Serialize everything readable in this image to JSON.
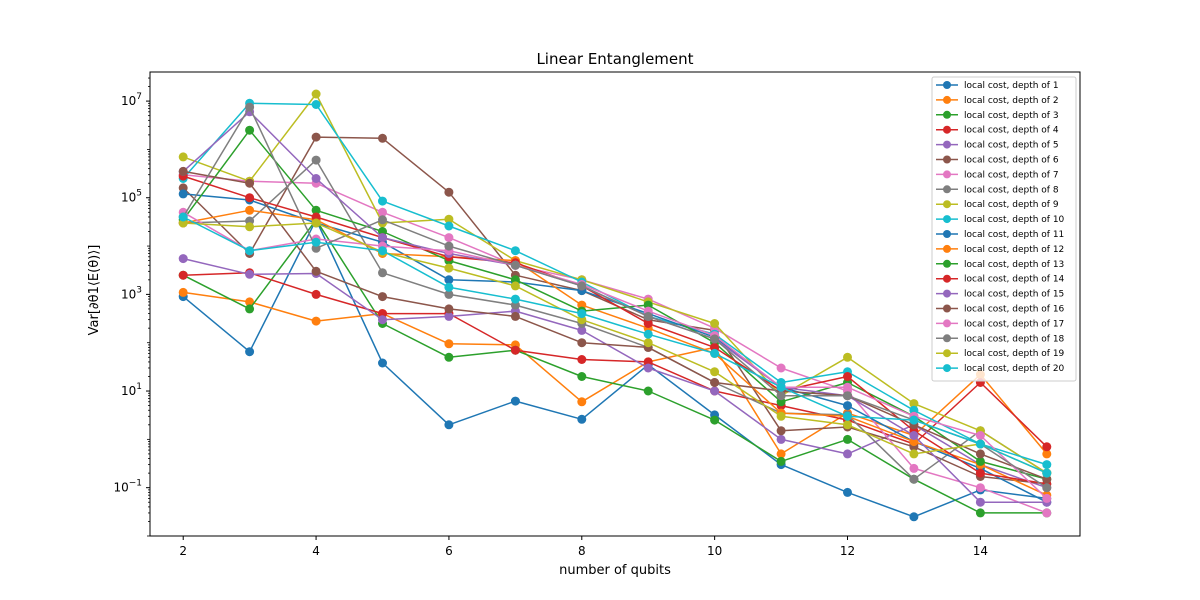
{
  "chart_data": {
    "type": "line",
    "title": "Linear Entanglement",
    "xlabel": "number of qubits",
    "ylabel": "Var[∂θ1⟨E(θ)⟩]",
    "x": [
      2,
      3,
      4,
      5,
      6,
      7,
      8,
      9,
      10,
      11,
      12,
      13,
      14,
      15
    ],
    "xlim": [
      1.5,
      15.5
    ],
    "xticks": [
      2,
      4,
      6,
      8,
      10,
      12,
      14
    ],
    "yscale": "log",
    "ylim": [
      0.01,
      40000000
    ],
    "yticks": [
      {
        "value": 0.1,
        "base": "10",
        "exp": "−1"
      },
      {
        "value": 10,
        "base": "10",
        "exp": "1"
      },
      {
        "value": 1000,
        "base": "10",
        "exp": "3"
      },
      {
        "value": 100000,
        "base": "10",
        "exp": "5"
      },
      {
        "value": 10000000,
        "base": "10",
        "exp": "7"
      }
    ],
    "grid": false,
    "legend_position": "top-right",
    "series": [
      {
        "name": "local cost, depth of 1",
        "color": "#1f77b4",
        "values": [
          900,
          65,
          35000,
          38,
          2,
          6.2,
          2.6,
          35,
          3.2,
          0.3,
          0.08,
          0.025,
          0.09,
          0.06
        ]
      },
      {
        "name": "local cost, depth of 2",
        "color": "#ff7f0e",
        "values": [
          1100,
          700,
          280,
          400,
          95,
          90,
          6,
          40,
          80,
          0.5,
          3.5,
          1.2,
          22,
          0.5
        ]
      },
      {
        "name": "local cost, depth of 3",
        "color": "#2ca02c",
        "values": [
          2500,
          500,
          35000,
          250,
          50,
          70,
          20,
          10,
          2.5,
          0.35,
          1,
          0.15,
          0.03,
          0.03
        ]
      },
      {
        "name": "local cost, depth of 4",
        "color": "#d62728",
        "values": [
          2500,
          2800,
          1000,
          400,
          400,
          70,
          45,
          40,
          10,
          5,
          2.5,
          0.8,
          15,
          0.7
        ]
      },
      {
        "name": "local cost, depth of 5",
        "color": "#9467bd",
        "values": [
          5500,
          2600,
          2700,
          300,
          350,
          450,
          180,
          30,
          10,
          1,
          0.5,
          2,
          0.3,
          0.1
        ]
      },
      {
        "name": "local cost, depth of 6",
        "color": "#8c564b",
        "values": [
          160000,
          7000,
          1800000,
          1700000,
          130000,
          2500,
          1200,
          300,
          180,
          1.5,
          1.8,
          0.7,
          0.17,
          0.12
        ]
      },
      {
        "name": "local cost, depth of 7",
        "color": "#e377c2",
        "values": [
          300000,
          220000,
          200000,
          50000,
          15000,
          4000,
          2000,
          800,
          200,
          30,
          10,
          0.25,
          0.1,
          0.03
        ]
      },
      {
        "name": "local cost, depth of 8",
        "color": "#7f7f7f",
        "values": [
          30000,
          33000,
          600000,
          2800,
          1000,
          600,
          250,
          80,
          15,
          3.5,
          3.2,
          0.15,
          1.5,
          0.2
        ]
      },
      {
        "name": "local cost, depth of 9",
        "color": "#bcbd22",
        "values": [
          700000,
          220000,
          14000000,
          30000,
          36000,
          5000,
          2000,
          700,
          250,
          8,
          50,
          5.5,
          1.5,
          0.2
        ]
      },
      {
        "name": "local cost, depth of 10",
        "color": "#17becf",
        "values": [
          250000,
          9000000,
          8500000,
          85000,
          26000,
          8000,
          1800,
          350,
          150,
          15,
          25,
          4,
          0.8,
          0.3
        ]
      },
      {
        "name": "local cost, depth of 11",
        "color": "#1f77b4",
        "values": [
          120000,
          90000,
          30000,
          12000,
          2000,
          1800,
          1200,
          400,
          130,
          12,
          5,
          0.9,
          0.25,
          0.05
        ]
      },
      {
        "name": "local cost, depth of 12",
        "color": "#ff7f0e",
        "values": [
          30000,
          55000,
          35000,
          7000,
          6000,
          5000,
          600,
          200,
          60,
          3.5,
          3,
          0.9,
          0.3,
          0.07
        ]
      },
      {
        "name": "local cost, depth of 13",
        "color": "#2ca02c",
        "values": [
          35000,
          2500000,
          55000,
          20000,
          5000,
          2000,
          450,
          600,
          100,
          6,
          15,
          3,
          0.35,
          0.15
        ]
      },
      {
        "name": "local cost, depth of 14",
        "color": "#d62728",
        "values": [
          280000,
          100000,
          40000,
          15000,
          6000,
          4500,
          1500,
          250,
          80,
          10,
          20,
          1.5,
          0.2,
          0.12
        ]
      },
      {
        "name": "local cost, depth of 15",
        "color": "#9467bd",
        "values": [
          350000,
          6000000,
          250000,
          15000,
          7000,
          4000,
          1500,
          350,
          120,
          12,
          8,
          1.2,
          0.05,
          0.05
        ]
      },
      {
        "name": "local cost, depth of 16",
        "color": "#8c564b",
        "values": [
          350000,
          200000,
          3000,
          900,
          500,
          350,
          100,
          80,
          15,
          10,
          8,
          2,
          0.5,
          0.15
        ]
      },
      {
        "name": "local cost, depth of 17",
        "color": "#e377c2",
        "values": [
          50000,
          8000,
          14000,
          10000,
          8000,
          4000,
          1600,
          450,
          140,
          12,
          12,
          3,
          1.2,
          0.06
        ]
      },
      {
        "name": "local cost, depth of 18",
        "color": "#7f7f7f",
        "values": [
          40000,
          7500000,
          9000,
          35000,
          10000,
          4000,
          1500,
          350,
          120,
          8,
          8,
          2.5,
          0.8,
          0.1
        ]
      },
      {
        "name": "local cost, depth of 19",
        "color": "#bcbd22",
        "values": [
          30000,
          25000,
          30000,
          7500,
          3500,
          1500,
          300,
          100,
          25,
          3,
          2,
          0.5,
          0.8,
          0.2
        ]
      },
      {
        "name": "local cost, depth of 20",
        "color": "#17becf",
        "values": [
          40000,
          8000,
          12000,
          8000,
          1400,
          800,
          400,
          150,
          60,
          12,
          3,
          2.5,
          0.8,
          0.2
        ]
      }
    ]
  }
}
